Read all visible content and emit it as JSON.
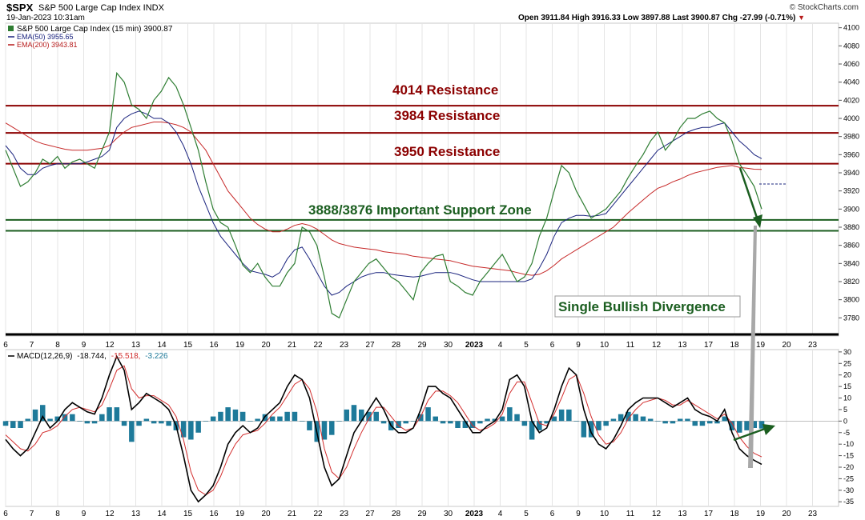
{
  "header": {
    "symbol": "$SPX",
    "name": "S&P 500 Large Cap Index  INDX",
    "datetime": "19-Jan-2023 10:31am",
    "ohlc": "Open 3911.84  High 3916.33  Low 3897.88  Last 3900.87  Chg -27.99 (-0.71%)",
    "credit": "© StockCharts.com"
  },
  "price_legend": [
    {
      "text": "S&P 500 Large Cap Index (15 min) 3900.87",
      "color": "#000000"
    },
    {
      "text": "EMA(50) 3955.65",
      "color": "#1a237e"
    },
    {
      "text": "EMA(200) 3943.81",
      "color": "#b71c1c"
    }
  ],
  "macd_legend": {
    "label": "MACD(12,26,9)",
    "macd": "-18.744,",
    "signal": "-15.518,",
    "hist": "-3.226",
    "macd_color": "#000000",
    "signal_color": "#d32f2f",
    "hist_color": "#1e7a9a"
  },
  "annotations": {
    "r4014": "4014 Resistance",
    "r3984": "3984 Resistance",
    "r3950": "3950 Resistance",
    "support": "3888/3876 Important Support Zone",
    "divergence": "Single Bullish Divergence"
  },
  "chart_data": {
    "type": "line",
    "x_labels": [
      "6",
      "7",
      "8",
      "9",
      "12",
      "13",
      "14",
      "15",
      "16",
      "19",
      "20",
      "21",
      "22",
      "23",
      "27",
      "28",
      "29",
      "30",
      "2023",
      "4",
      "5",
      "6",
      "9",
      "10",
      "11",
      "12",
      "13",
      "17",
      "18",
      "19",
      "20",
      "23"
    ],
    "price": {
      "ylim": [
        3760,
        4105
      ],
      "ticks": [
        3780,
        3800,
        3820,
        3840,
        3860,
        3880,
        3900,
        3920,
        3940,
        3960,
        3980,
        4000,
        4020,
        4040,
        4060,
        4080,
        4100
      ],
      "close": [
        3965,
        3945,
        3925,
        3930,
        3940,
        3955,
        3950,
        3958,
        3945,
        3952,
        3955,
        3950,
        3945,
        3965,
        3985,
        4050,
        4040,
        4015,
        4010,
        4000,
        4020,
        4030,
        4045,
        4035,
        4015,
        3990,
        3965,
        3930,
        3900,
        3885,
        3880,
        3860,
        3838,
        3830,
        3840,
        3825,
        3815,
        3815,
        3830,
        3840,
        3880,
        3875,
        3860,
        3825,
        3785,
        3780,
        3800,
        3820,
        3830,
        3840,
        3845,
        3835,
        3825,
        3820,
        3810,
        3800,
        3830,
        3840,
        3848,
        3850,
        3820,
        3815,
        3808,
        3805,
        3820,
        3830,
        3840,
        3850,
        3835,
        3820,
        3825,
        3840,
        3870,
        3890,
        3920,
        3948,
        3940,
        3920,
        3905,
        3890,
        3895,
        3900,
        3910,
        3920,
        3935,
        3948,
        3960,
        3975,
        3985,
        3965,
        3975,
        3990,
        4000,
        4000,
        4005,
        4008,
        4000,
        3995,
        3975,
        3950,
        3938,
        3925,
        3900
      ],
      "ema50": [
        3970,
        3960,
        3945,
        3938,
        3938,
        3945,
        3948,
        3950,
        3950,
        3950,
        3950,
        3952,
        3955,
        3958,
        3965,
        3990,
        4000,
        4005,
        4008,
        4005,
        4000,
        4000,
        3995,
        3985,
        3970,
        3950,
        3925,
        3905,
        3885,
        3870,
        3860,
        3850,
        3840,
        3832,
        3830,
        3828,
        3825,
        3830,
        3845,
        3855,
        3858,
        3845,
        3830,
        3815,
        3805,
        3808,
        3815,
        3820,
        3825,
        3828,
        3830,
        3830,
        3828,
        3827,
        3826,
        3825,
        3826,
        3828,
        3830,
        3830,
        3830,
        3828,
        3825,
        3822,
        3820,
        3820,
        3820,
        3820,
        3820,
        3820,
        3820,
        3823,
        3835,
        3850,
        3870,
        3885,
        3890,
        3893,
        3893,
        3892,
        3893,
        3895,
        3905,
        3915,
        3925,
        3935,
        3945,
        3955,
        3965,
        3970,
        3975,
        3980,
        3985,
        3988,
        3990,
        3990,
        3993,
        3995,
        3985,
        3975,
        3968,
        3960,
        3955.65
      ],
      "ema200": [
        3995,
        3990,
        3985,
        3980,
        3975,
        3972,
        3970,
        3968,
        3966,
        3965,
        3965,
        3965,
        3966,
        3967,
        3970,
        3978,
        3985,
        3990,
        3992,
        3994,
        3996,
        3996,
        3995,
        3993,
        3990,
        3985,
        3975,
        3965,
        3950,
        3935,
        3920,
        3910,
        3900,
        3890,
        3883,
        3878,
        3875,
        3875,
        3878,
        3882,
        3884,
        3882,
        3878,
        3872,
        3866,
        3862,
        3860,
        3858,
        3857,
        3856,
        3855,
        3853,
        3852,
        3851,
        3850,
        3848,
        3847,
        3846,
        3845,
        3844,
        3843,
        3841,
        3839,
        3837,
        3836,
        3835,
        3834,
        3833,
        3832,
        3830,
        3828,
        3827,
        3828,
        3832,
        3838,
        3845,
        3850,
        3855,
        3860,
        3865,
        3870,
        3875,
        3880,
        3888,
        3896,
        3903,
        3910,
        3917,
        3923,
        3926,
        3930,
        3933,
        3937,
        3940,
        3942,
        3944,
        3946,
        3947,
        3948,
        3946,
        3945,
        3944,
        3943.81
      ],
      "levels": [
        {
          "value": 4014,
          "color": "#8b0000",
          "label": "4014 Resistance"
        },
        {
          "value": 3984,
          "color": "#8b0000",
          "label": "3984 Resistance"
        },
        {
          "value": 3950,
          "color": "#8b0000",
          "label": "3950 Resistance"
        },
        {
          "value": 3888,
          "color": "#1b5e20",
          "label": "3888/3876 Important Support Zone"
        },
        {
          "value": 3876,
          "color": "#1b5e20",
          "label": "3888/3876 Important Support Zone"
        }
      ],
      "last": 3900.87
    },
    "macd": {
      "ylim": [
        -37,
        31
      ],
      "ticks": [
        -35,
        -30,
        -25,
        -20,
        -15,
        -10,
        -5,
        0,
        5,
        10,
        15,
        20,
        25,
        30
      ],
      "macd": [
        -8,
        -12,
        -15,
        -12,
        -5,
        2,
        -3,
        0,
        5,
        8,
        6,
        4,
        3,
        10,
        20,
        28,
        22,
        5,
        8,
        12,
        10,
        8,
        5,
        -2,
        -15,
        -30,
        -35,
        -32,
        -28,
        -20,
        -10,
        -5,
        -2,
        -5,
        -3,
        2,
        5,
        8,
        15,
        20,
        18,
        10,
        -5,
        -20,
        -28,
        -25,
        -15,
        -5,
        0,
        5,
        10,
        5,
        -2,
        -5,
        -5,
        -3,
        5,
        15,
        15,
        12,
        10,
        5,
        0,
        -5,
        -5,
        -2,
        0,
        5,
        18,
        20,
        15,
        0,
        -5,
        -3,
        5,
        15,
        23,
        20,
        5,
        -5,
        -10,
        -12,
        -8,
        -2,
        5,
        8,
        10,
        10,
        10,
        8,
        6,
        8,
        10,
        5,
        3,
        2,
        0,
        5,
        -5,
        -12,
        -15,
        -17,
        -18.744
      ],
      "signal": [
        -6,
        -9,
        -12,
        -13,
        -10,
        -5,
        -4,
        -2,
        2,
        5,
        6,
        5,
        4,
        7,
        14,
        22,
        24,
        14,
        10,
        11,
        11,
        9,
        7,
        2,
        -8,
        -22,
        -30,
        -32,
        -30,
        -24,
        -16,
        -10,
        -6,
        -5,
        -4,
        -1,
        3,
        6,
        11,
        16,
        18,
        14,
        4,
        -12,
        -22,
        -25,
        -20,
        -12,
        -5,
        1,
        6,
        6,
        2,
        -2,
        -4,
        -3,
        2,
        9,
        13,
        13,
        11,
        8,
        3,
        -2,
        -4,
        -3,
        -1,
        3,
        12,
        17,
        17,
        8,
        -1,
        -2,
        3,
        10,
        18,
        20,
        12,
        2,
        -6,
        -10,
        -9,
        -5,
        1,
        5,
        8,
        9,
        10,
        9,
        7,
        7,
        9,
        7,
        5,
        3,
        1,
        3,
        -1,
        -7,
        -11,
        -14,
        -15.518
      ]
    }
  }
}
